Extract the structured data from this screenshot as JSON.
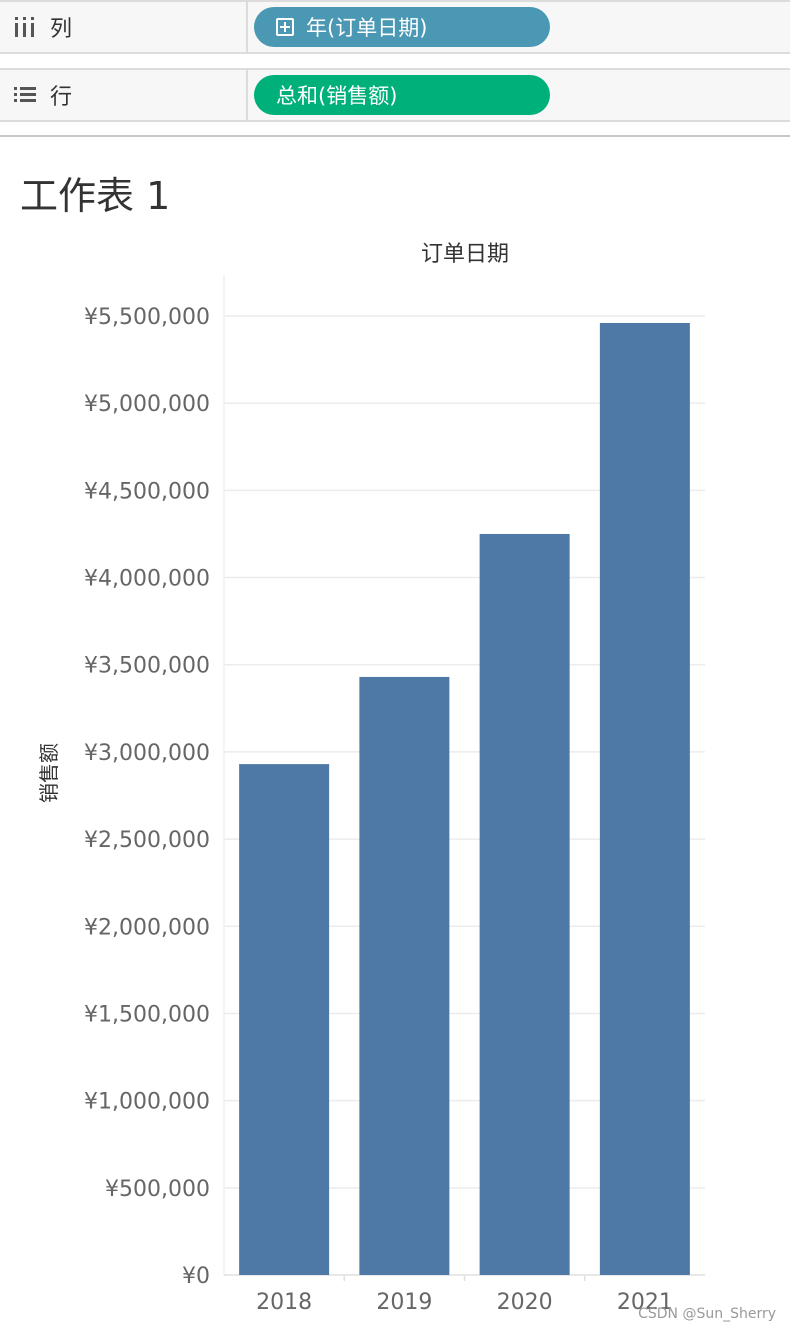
{
  "shelves": {
    "columns": {
      "label": "列",
      "pill": "年(订单日期)",
      "icon": "columns-icon",
      "pill_icon": "expand-plus-icon",
      "color": "#4a98b4"
    },
    "rows": {
      "label": "行",
      "pill": "总和(销售额)",
      "icon": "rows-icon",
      "color": "#00b07a"
    }
  },
  "sheet": {
    "title": "工作表 1"
  },
  "chart_data": {
    "type": "bar",
    "xlabel": "订单日期",
    "ylabel": "销售额",
    "categories": [
      "2018",
      "2019",
      "2020",
      "2021"
    ],
    "values": [
      2930000,
      3430000,
      4250000,
      5460000
    ],
    "ylim": [
      0,
      5500000
    ],
    "yticks": [
      0,
      500000,
      1000000,
      1500000,
      2000000,
      2500000,
      3000000,
      3500000,
      4000000,
      4500000,
      5000000,
      5500000
    ],
    "ytick_labels": [
      "¥0",
      "¥500,000",
      "¥1,000,000",
      "¥1,500,000",
      "¥2,000,000",
      "¥2,500,000",
      "¥3,000,000",
      "¥3,500,000",
      "¥4,000,000",
      "¥4,500,000",
      "¥5,000,000",
      "¥5,500,000"
    ],
    "bar_color": "#4e79a7",
    "grid": true
  },
  "watermark": "CSDN @Sun_Sherry"
}
